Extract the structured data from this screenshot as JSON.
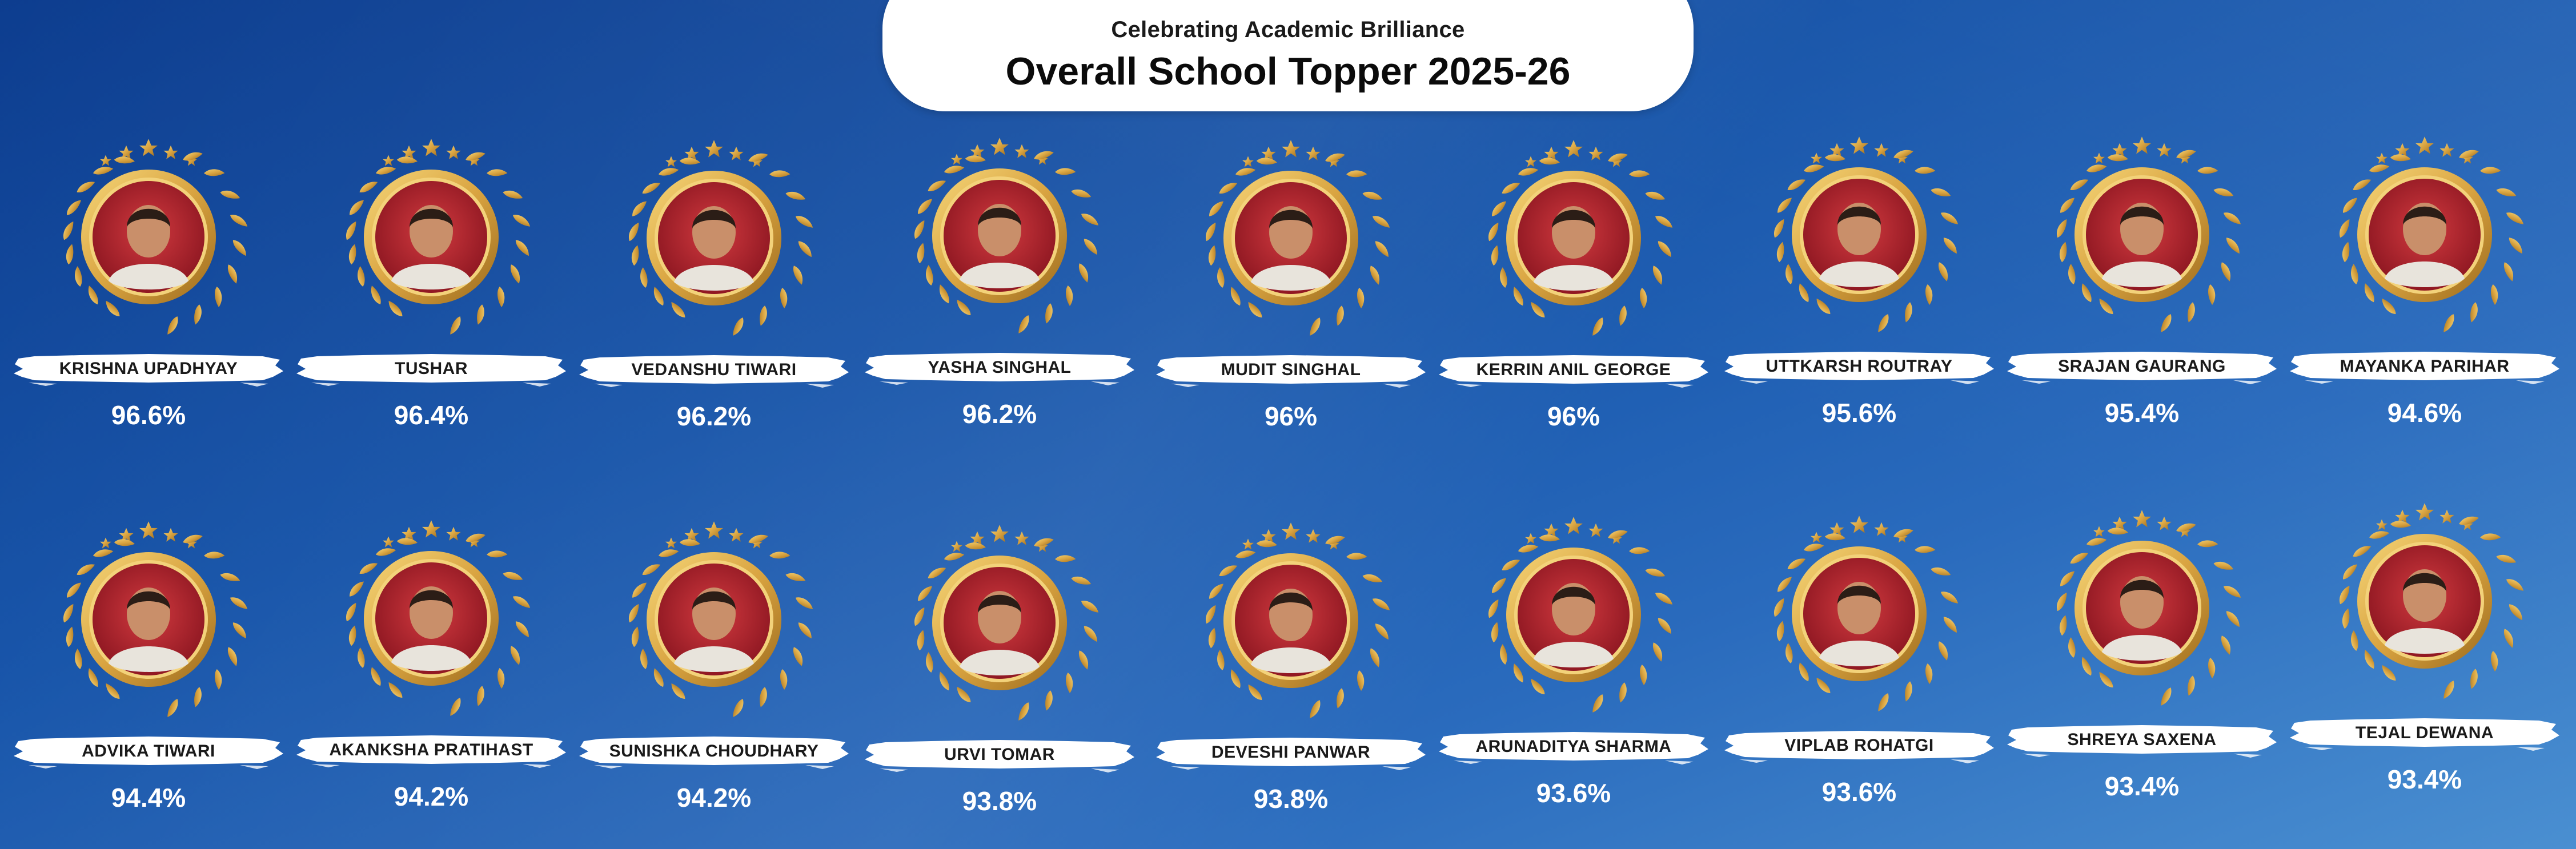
{
  "header": {
    "subtitle": "Celebrating Academic Brilliance",
    "title": "Overall School Topper 2025-26"
  },
  "colors": {
    "background": "#1452a8",
    "gold": "#d9a441",
    "photo_backdrop": "#b3202a",
    "text_dark": "#1a1a1a",
    "score_text": "#ffffff"
  },
  "icons": [
    "star-icon",
    "laurel-wreath-icon"
  ],
  "toppers": [
    {
      "name": "KRISHNA UPADHYAY",
      "score": "96.6%"
    },
    {
      "name": "TUSHAR",
      "score": "96.4%"
    },
    {
      "name": "VEDANSHU TIWARI",
      "score": "96.2%"
    },
    {
      "name": "YASHA SINGHAL",
      "score": "96.2%"
    },
    {
      "name": "MUDIT SINGHAL",
      "score": "96%"
    },
    {
      "name": "KERRIN ANIL GEORGE",
      "score": "96%"
    },
    {
      "name": "UTTKARSH ROUTRAY",
      "score": "95.6%"
    },
    {
      "name": "SRAJAN GAURANG",
      "score": "95.4%"
    },
    {
      "name": "MAYANKA PARIHAR",
      "score": "94.6%"
    },
    {
      "name": "ADVIKA TIWARI",
      "score": "94.4%"
    },
    {
      "name": "AKANKSHA PRATIHAST",
      "score": "94.2%"
    },
    {
      "name": "SUNISHKA CHOUDHARY",
      "score": "94.2%"
    },
    {
      "name": "URVI TOMAR",
      "score": "93.8%"
    },
    {
      "name": "DEVESHI PANWAR",
      "score": "93.8%"
    },
    {
      "name": "ARUNADITYA SHARMA",
      "score": "93.6%"
    },
    {
      "name": "VIPLAB ROHATGI",
      "score": "93.6%"
    },
    {
      "name": "SHREYA SAXENA",
      "score": "93.4%"
    },
    {
      "name": "TEJAL DEWANA",
      "score": "93.4%"
    }
  ]
}
